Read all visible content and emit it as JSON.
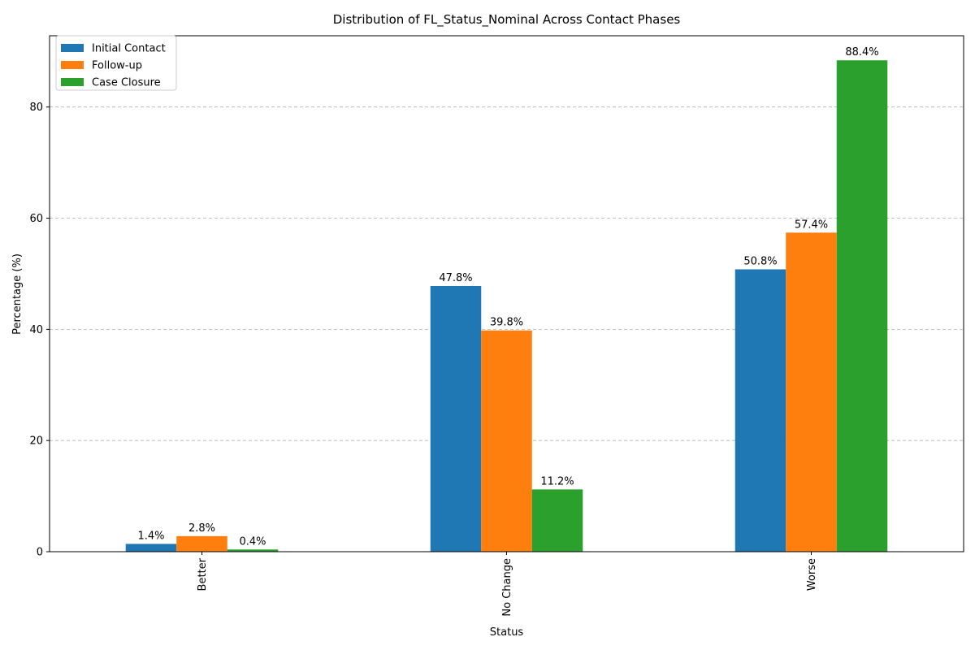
{
  "chart_data": {
    "type": "bar",
    "title": "Distribution of FL_Status_Nominal Across Contact Phases",
    "xlabel": "Status",
    "ylabel": "Percentage (%)",
    "categories": [
      "Better",
      "No Change",
      "Worse"
    ],
    "series": [
      {
        "name": "Initial Contact",
        "color": "#1f77b4",
        "values": [
          1.4,
          47.8,
          50.8
        ],
        "labels": [
          "1.4%",
          "47.8%",
          "50.8%"
        ]
      },
      {
        "name": "Follow-up",
        "color": "#ff7f0e",
        "values": [
          2.8,
          39.8,
          57.4
        ],
        "labels": [
          "2.8%",
          "39.8%",
          "57.4%"
        ]
      },
      {
        "name": "Case Closure",
        "color": "#2ca02c",
        "values": [
          0.4,
          11.2,
          88.4
        ],
        "labels": [
          "0.4%",
          "11.2%",
          "88.4%"
        ]
      }
    ],
    "ylim": [
      0,
      92.82
    ],
    "yticks": [
      0,
      20,
      40,
      60,
      80
    ],
    "ytick_labels": [
      "0",
      "20",
      "40",
      "60",
      "80"
    ],
    "grid": "y-dashed",
    "legend_position": "upper-left"
  }
}
